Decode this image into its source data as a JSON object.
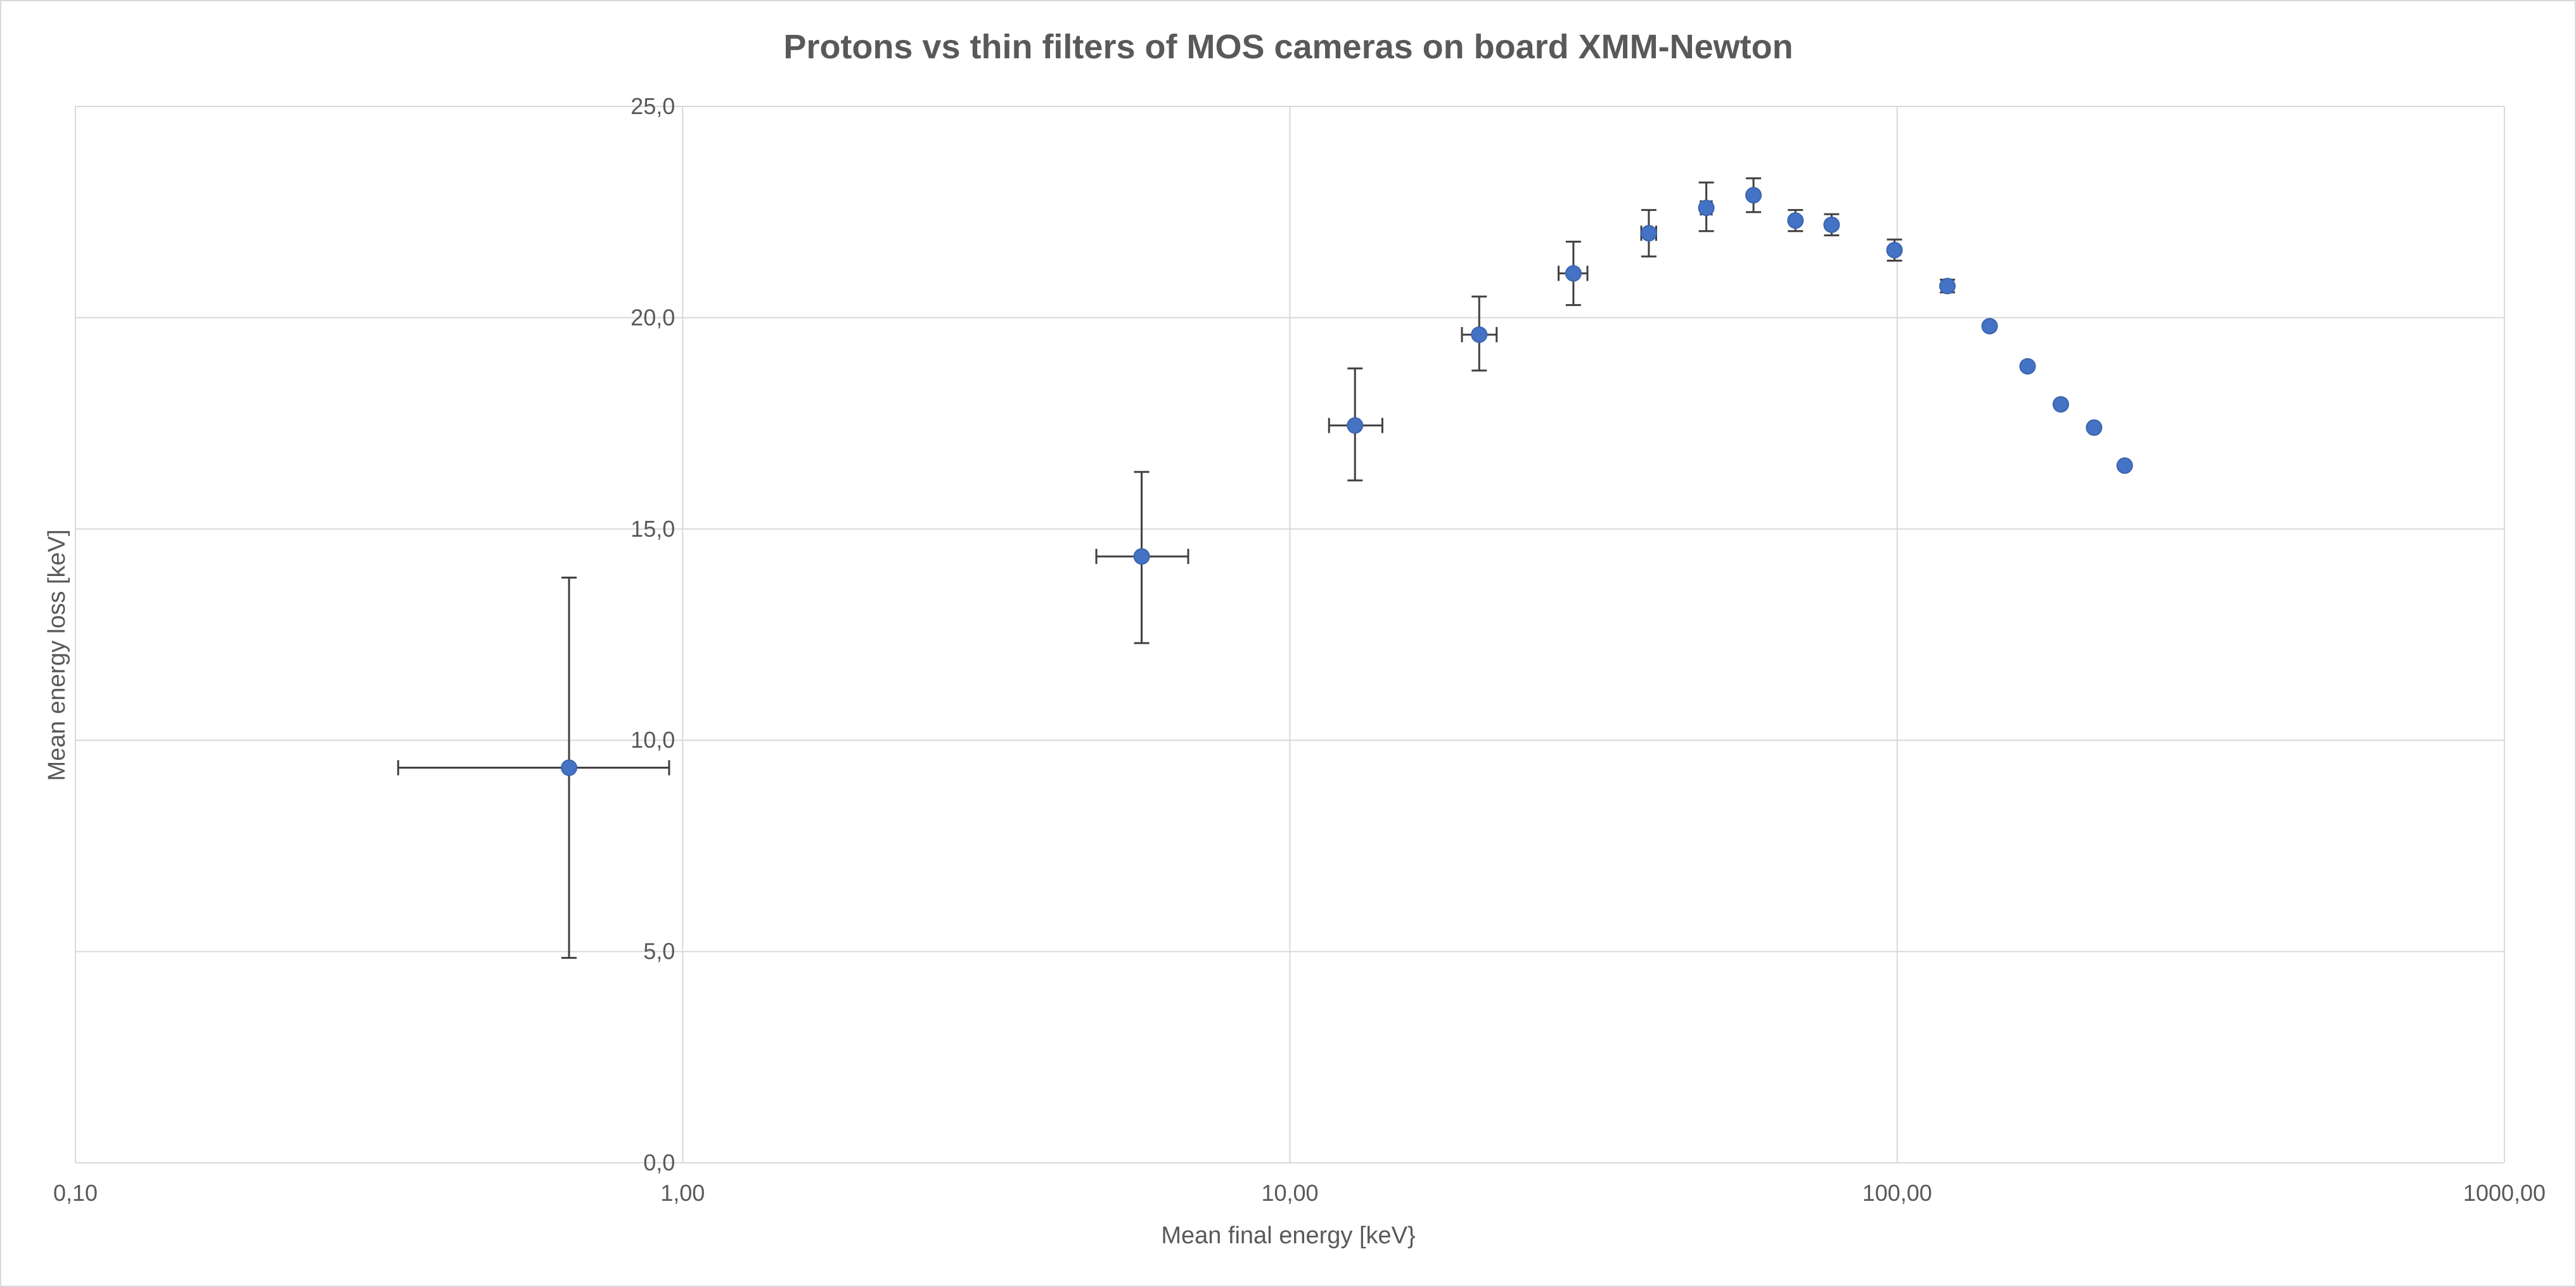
{
  "chart_data": {
    "type": "scatter",
    "title": "Protons vs thin filters of MOS cameras on board XMM-Newton",
    "xlabel": "Mean final energy [keV}",
    "ylabel": "Mean energy loss [keV]",
    "x_scale": "log",
    "xlim": [
      0.1,
      1000
    ],
    "ylim": [
      0,
      25
    ],
    "x_ticks": [
      0.1,
      1,
      10,
      100,
      1000
    ],
    "x_tick_labels": [
      "0,10",
      "1,00",
      "10,00",
      "100,00",
      "1000,00"
    ],
    "y_ticks": [
      0,
      5,
      10,
      15,
      20,
      25
    ],
    "y_tick_labels": [
      "0,0",
      "5,0",
      "10,0",
      "15,0",
      "20,0",
      "25,0"
    ],
    "grid": true,
    "marker_color": "#4472c4",
    "errorbar_color": "#404040",
    "gridline_color": "#d9d9d9",
    "points": [
      {
        "x": 0.65,
        "y": 9.35,
        "x_low": 0.34,
        "x_high": 0.95,
        "y_low": 4.85,
        "y_high": 13.85
      },
      {
        "x": 5.7,
        "y": 14.35,
        "x_low": 4.8,
        "x_high": 6.8,
        "y_low": 12.3,
        "y_high": 16.35
      },
      {
        "x": 12.8,
        "y": 17.45,
        "x_low": 11.6,
        "x_high": 14.2,
        "y_low": 16.15,
        "y_high": 18.8
      },
      {
        "x": 20.5,
        "y": 19.6,
        "x_low": 19.2,
        "x_high": 21.9,
        "y_low": 18.75,
        "y_high": 20.5
      },
      {
        "x": 29.3,
        "y": 21.05,
        "x_low": 27.7,
        "x_high": 30.9,
        "y_low": 20.3,
        "y_high": 21.8
      },
      {
        "x": 39.0,
        "y": 22.0,
        "x_low": 37.9,
        "x_high": 40.1,
        "y_low": 21.45,
        "y_high": 22.55
      },
      {
        "x": 48.5,
        "y": 22.6,
        "x_low": 47.5,
        "x_high": 49.5,
        "y_low": 22.05,
        "y_high": 23.2
      },
      {
        "x": 58.0,
        "y": 22.9,
        "y_low": 22.5,
        "y_high": 23.3
      },
      {
        "x": 68.0,
        "y": 22.3,
        "y_low": 22.05,
        "y_high": 22.55
      },
      {
        "x": 78.0,
        "y": 22.2,
        "y_low": 21.95,
        "y_high": 22.45
      },
      {
        "x": 99.0,
        "y": 21.6,
        "y_low": 21.35,
        "y_high": 21.85
      },
      {
        "x": 121.0,
        "y": 20.75,
        "y_low": 20.6,
        "y_high": 20.9
      },
      {
        "x": 142.0,
        "y": 19.8
      },
      {
        "x": 164.0,
        "y": 18.85
      },
      {
        "x": 186.0,
        "y": 17.95
      },
      {
        "x": 211.0,
        "y": 17.4
      },
      {
        "x": 237.0,
        "y": 16.5
      }
    ]
  }
}
